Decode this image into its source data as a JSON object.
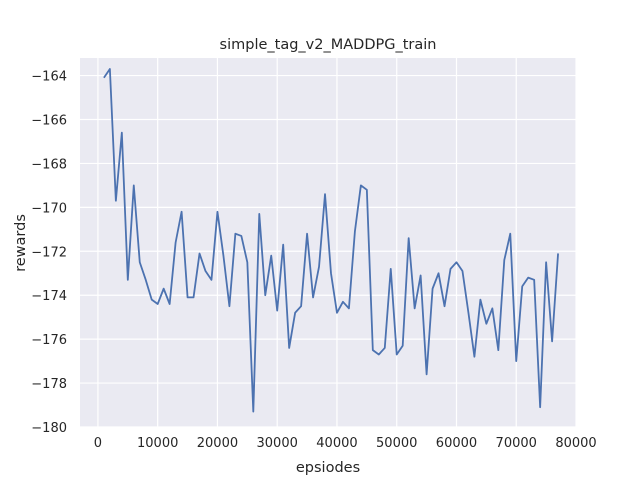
{
  "chart_data": {
    "type": "line",
    "title": "simple_tag_v2_MADDPG_train",
    "xlabel": "epsiodes",
    "ylabel": "rewards",
    "xlim": [
      -3000,
      80000
    ],
    "ylim": [
      -180,
      -163.2
    ],
    "xticks": [
      0,
      10000,
      20000,
      30000,
      40000,
      50000,
      60000,
      70000,
      80000
    ],
    "yticks": [
      -180,
      -178,
      -176,
      -174,
      -172,
      -170,
      -168,
      -166,
      -164
    ],
    "grid": true,
    "background": "#eaeaf2",
    "gridcolor": "#ffffff",
    "series": [
      {
        "color": "#4c72b0",
        "x": [
          1000,
          2000,
          3000,
          4000,
          5000,
          6000,
          7000,
          8000,
          9000,
          10000,
          11000,
          12000,
          13000,
          14000,
          15000,
          16000,
          17000,
          18000,
          19000,
          20000,
          21000,
          22000,
          23000,
          24000,
          25000,
          26000,
          27000,
          28000,
          29000,
          30000,
          31000,
          32000,
          33000,
          34000,
          35000,
          36000,
          37000,
          38000,
          39000,
          40000,
          41000,
          42000,
          43000,
          44000,
          45000,
          46000,
          47000,
          48000,
          49000,
          50000,
          51000,
          52000,
          53000,
          54000,
          55000,
          56000,
          57000,
          58000,
          59000,
          60000,
          61000,
          62000,
          63000,
          64000,
          65000,
          66000,
          67000,
          68000,
          69000,
          70000,
          71000,
          72000,
          73000,
          74000,
          75000,
          76000,
          77000
        ],
        "values": [
          -164.1,
          -163.7,
          -169.7,
          -166.6,
          -173.3,
          -169.0,
          -172.5,
          -173.3,
          -174.2,
          -174.4,
          -173.7,
          -174.4,
          -171.6,
          -170.2,
          -174.1,
          -174.1,
          -172.1,
          -172.9,
          -173.3,
          -170.2,
          -172.2,
          -174.5,
          -171.2,
          -171.3,
          -172.5,
          -179.3,
          -170.3,
          -174.0,
          -172.2,
          -174.7,
          -171.7,
          -176.4,
          -174.8,
          -174.5,
          -171.2,
          -174.1,
          -172.7,
          -169.4,
          -173.0,
          -174.8,
          -174.3,
          -174.6,
          -171.1,
          -169.0,
          -169.2,
          -176.5,
          -176.7,
          -176.4,
          -172.8,
          -176.7,
          -176.3,
          -171.4,
          -174.6,
          -173.1,
          -177.6,
          -173.7,
          -173.0,
          -174.5,
          -172.8,
          -172.5,
          -172.9,
          -174.8,
          -176.8,
          -174.2,
          -175.3,
          -174.6,
          -176.5,
          -172.4,
          -171.2,
          -177.0,
          -173.6,
          -173.2,
          -173.3,
          -179.1,
          -172.5,
          -176.1,
          -172.1
        ]
      }
    ]
  }
}
